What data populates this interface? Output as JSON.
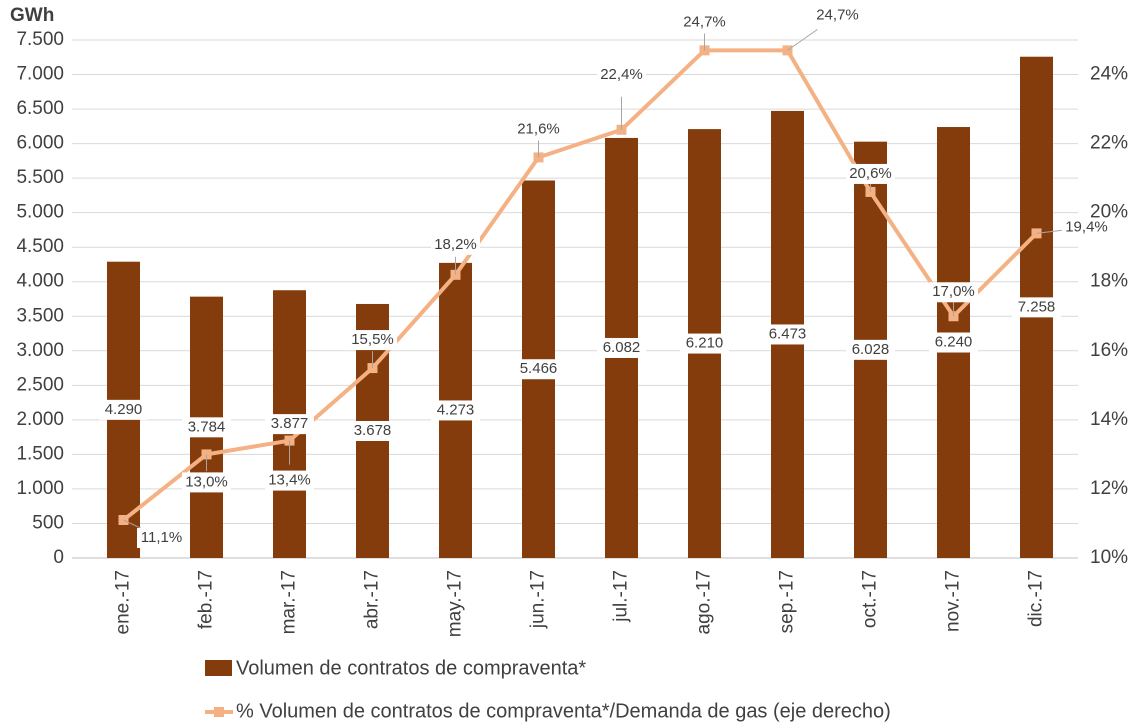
{
  "chart_data": {
    "type": "bar",
    "y_label": "GWh",
    "categories": [
      "ene.-17",
      "feb.-17",
      "mar.-17",
      "abr.-17",
      "may.-17",
      "jun.-17",
      "jul.-17",
      "ago.-17",
      "sep.-17",
      "oct.-17",
      "nov.-17",
      "dic.-17"
    ],
    "series": [
      {
        "name": "Volumen de contratos de compraventa*",
        "type": "bar",
        "color": "#843c0c",
        "values": [
          4290,
          3784,
          3877,
          3678,
          4273,
          5466,
          6082,
          6210,
          6473,
          6028,
          6240,
          7258
        ],
        "value_labels": [
          "4.290",
          "3.784",
          "3.877",
          "3.678",
          "4.273",
          "5.466",
          "6.082",
          "6.210",
          "6.473",
          "6.028",
          "6.240",
          "7.258"
        ]
      },
      {
        "name": "% Volumen de contratos de compraventa*/Demanda de gas (eje derecho)",
        "type": "line",
        "axis": "y2",
        "color": "#f4b183",
        "values": [
          11.1,
          13.0,
          13.4,
          15.5,
          18.2,
          21.6,
          22.4,
          24.7,
          24.7,
          20.6,
          17.0,
          19.4
        ],
        "value_labels": [
          "11,1%",
          "13,0%",
          "13,4%",
          "15,5%",
          "18,2%",
          "21,6%",
          "22,4%",
          "24,7%",
          "24,7%",
          "20,6%",
          "17,0%",
          "19,4%"
        ]
      }
    ],
    "ylim": [
      0,
      7500
    ],
    "yticks": [
      0,
      500,
      {
        "value": 1000,
        "label": "1.000"
      },
      {
        "value": 1500,
        "label": "1.500"
      },
      {
        "value": 2000,
        "label": "2.000"
      },
      {
        "value": 2500,
        "label": "2.500"
      },
      {
        "value": 3000,
        "label": "3.000"
      },
      {
        "value": 3500,
        "label": "3.500"
      },
      {
        "value": 4000,
        "label": "4.000"
      },
      {
        "value": 4500,
        "label": "4.500"
      },
      {
        "value": 5000,
        "label": "5.000"
      },
      {
        "value": 5500,
        "label": "5.500"
      },
      {
        "value": 6000,
        "label": "6.000"
      },
      {
        "value": 6500,
        "label": "6.500"
      },
      {
        "value": 7000,
        "label": "7.000"
      },
      {
        "value": 7500,
        "label": "7.500"
      }
    ],
    "y2lim": [
      10,
      25
    ],
    "y2ticks": [
      {
        "value": 10,
        "label": "10%"
      },
      {
        "value": 12,
        "label": "12%"
      },
      {
        "value": 14,
        "label": "14%"
      },
      {
        "value": 16,
        "label": "16%"
      },
      {
        "value": 18,
        "label": "18%"
      },
      {
        "value": 20,
        "label": "20%"
      },
      {
        "value": 22,
        "label": "22%"
      },
      {
        "value": 24,
        "label": "24%"
      }
    ],
    "grid": true
  }
}
